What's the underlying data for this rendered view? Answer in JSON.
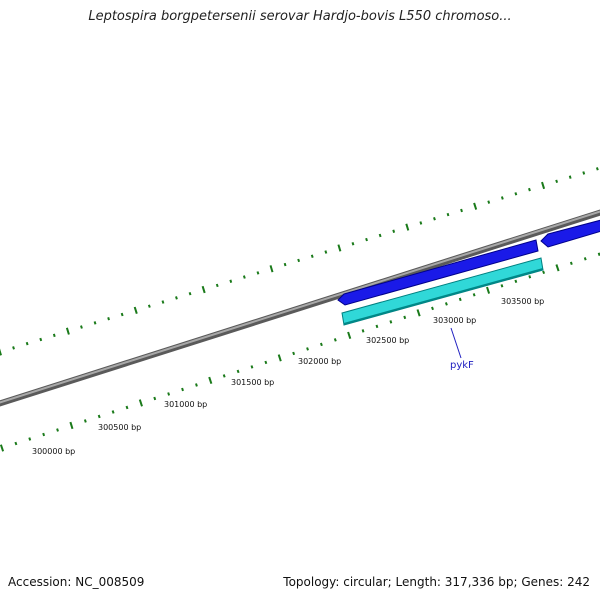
{
  "title": "Leptospira borgpetersenii serovar Hardjo-bovis L550 chromoso...",
  "footer": {
    "accession": "Accession: NC_008509",
    "summary": "Topology: circular; Length: 317,336 bp; Genes: 242"
  },
  "ticks": [
    {
      "label": "300000 bp"
    },
    {
      "label": "300500 bp"
    },
    {
      "label": "301000 bp"
    },
    {
      "label": "301500 bp"
    },
    {
      "label": "302000 bp"
    },
    {
      "label": "302500 bp"
    },
    {
      "label": "303000 bp"
    },
    {
      "label": "303500 bp"
    }
  ],
  "genes": [
    {
      "name": "",
      "strand": "forward",
      "color": "#1010e0"
    },
    {
      "name": "",
      "strand": "forward",
      "color": "#1010e0"
    },
    {
      "name": "pykF",
      "strand": "reverse",
      "color": "#20cccc"
    }
  ],
  "colors": {
    "backbone": "#808080",
    "tick": "#1a7a1a",
    "forward_gene": "#1010e0",
    "reverse_gene": "#20cccc",
    "label_line": "#2020c0"
  }
}
